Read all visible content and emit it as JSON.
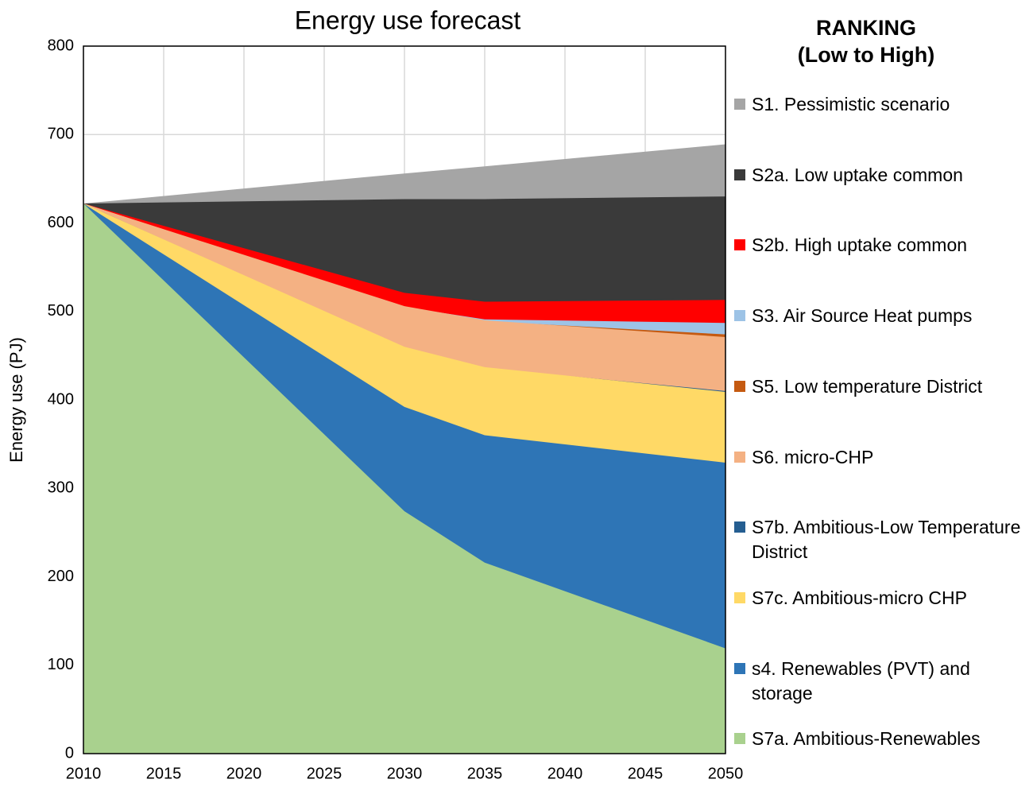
{
  "chart_data": {
    "type": "area",
    "title": "Energy use forecast",
    "y_label": "Energy use (PJ)",
    "legend_title": [
      "RANKING",
      "(Low to High)"
    ],
    "x": [
      2010,
      2030,
      2035,
      2050
    ],
    "xlim": [
      2010,
      2050
    ],
    "xticks": [
      2010,
      2015,
      2020,
      2025,
      2030,
      2035,
      2040,
      2045,
      2050
    ],
    "ylim": [
      0,
      800
    ],
    "yticks": [
      0,
      100,
      200,
      300,
      400,
      500,
      600,
      700,
      800
    ],
    "grid": true,
    "legend": "right",
    "series": [
      {
        "name": "S1. Pessimistic scenario",
        "color": "#a5a5a5",
        "values": [
          622,
          656,
          664,
          689
        ]
      },
      {
        "name": "S2a. Low uptake common",
        "color": "#3a3a3a",
        "values": [
          622,
          627,
          627,
          630
        ]
      },
      {
        "name": "S2b. High uptake common",
        "color": "#ff0000",
        "values": [
          622,
          521,
          511,
          513
        ]
      },
      {
        "name": "S3. Air Source Heat pumps",
        "color": "#9dc3e6",
        "values": [
          622,
          505,
          491,
          487
        ]
      },
      {
        "name": "S5. Low temperature District",
        "color": "#c55a11",
        "values": [
          622,
          504,
          489,
          474
        ]
      },
      {
        "name": "S6. micro-CHP",
        "color": "#f4b183",
        "values": [
          622,
          506,
          490,
          471
        ]
      },
      {
        "name": "S7b. Ambitious-Low Temperature District",
        "color": "#255e91",
        "values": [
          622,
          459,
          436,
          410
        ]
      },
      {
        "name": "S7c. Ambitious-micro CHP",
        "color": "#ffd966",
        "values": [
          622,
          460,
          437,
          409
        ]
      },
      {
        "name": "s4. Renewables (PVT) and storage",
        "color": "#2e75b6",
        "values": [
          622,
          392,
          360,
          329
        ]
      },
      {
        "name": "S7a. Ambitious-Renewables",
        "color": "#a9d18e",
        "values": [
          622,
          274,
          216,
          119
        ]
      }
    ]
  }
}
